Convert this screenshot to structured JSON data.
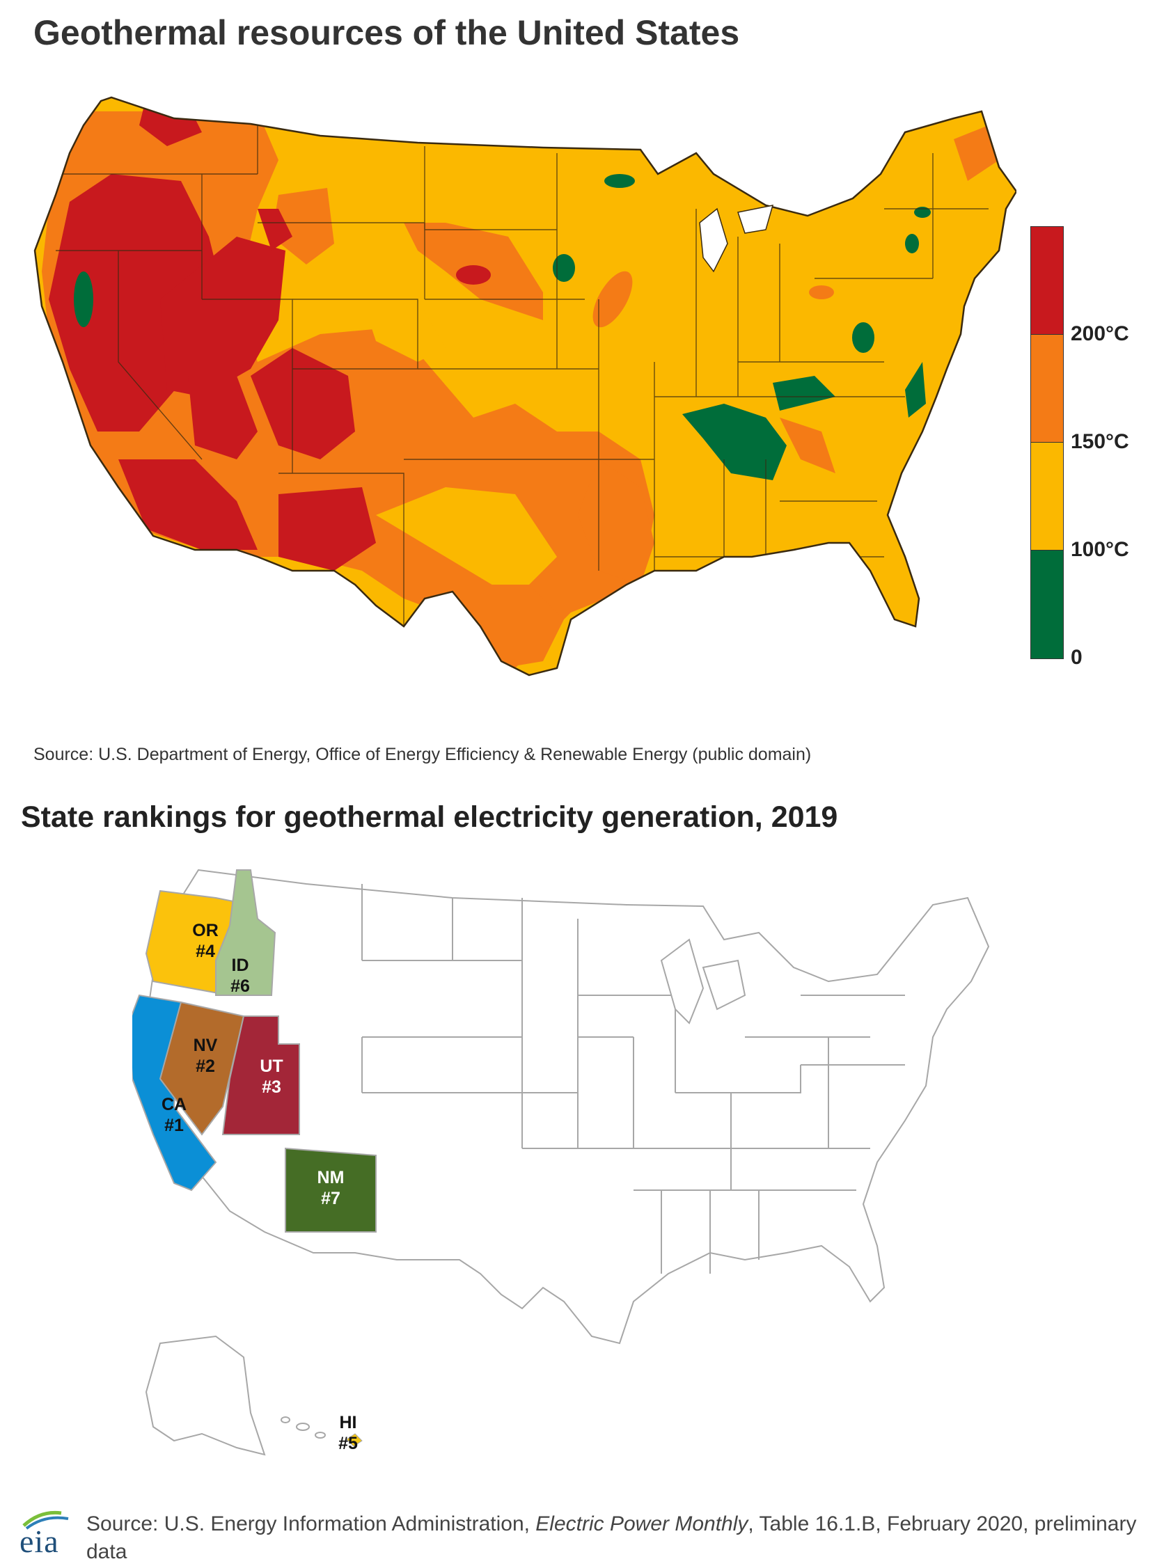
{
  "map1": {
    "title": "Geothermal resources of the United States",
    "legend": {
      "labels": [
        "200°C",
        "150°C",
        "100°C",
        "0"
      ],
      "colors": [
        "#c8191e",
        "#f47b16",
        "#fbb800",
        "#006d3a"
      ]
    },
    "source": "Source: U.S. Department of Energy, Office of Energy Efficiency & Renewable Energy (public domain)"
  },
  "map2": {
    "title": "State rankings for geothermal electricity generation, 2019",
    "states": [
      {
        "abbr": "CA",
        "rank": "#1",
        "color": "#0b8fd6"
      },
      {
        "abbr": "NV",
        "rank": "#2",
        "color": "#b36b2b"
      },
      {
        "abbr": "UT",
        "rank": "#3",
        "color": "#a32638"
      },
      {
        "abbr": "OR",
        "rank": "#4",
        "color": "#fbc20c"
      },
      {
        "abbr": "HI",
        "rank": "#5",
        "color": "#f2c515"
      },
      {
        "abbr": "ID",
        "rank": "#6",
        "color": "#a5c590"
      },
      {
        "abbr": "NM",
        "rank": "#7",
        "color": "#456d25"
      }
    ],
    "source_pre": "Source: U.S. Energy Information Administration, ",
    "source_italic": "Electric Power Monthly",
    "source_post": ", Table 16.1.B, February 2020, preliminary data",
    "logo_text": "eia"
  }
}
